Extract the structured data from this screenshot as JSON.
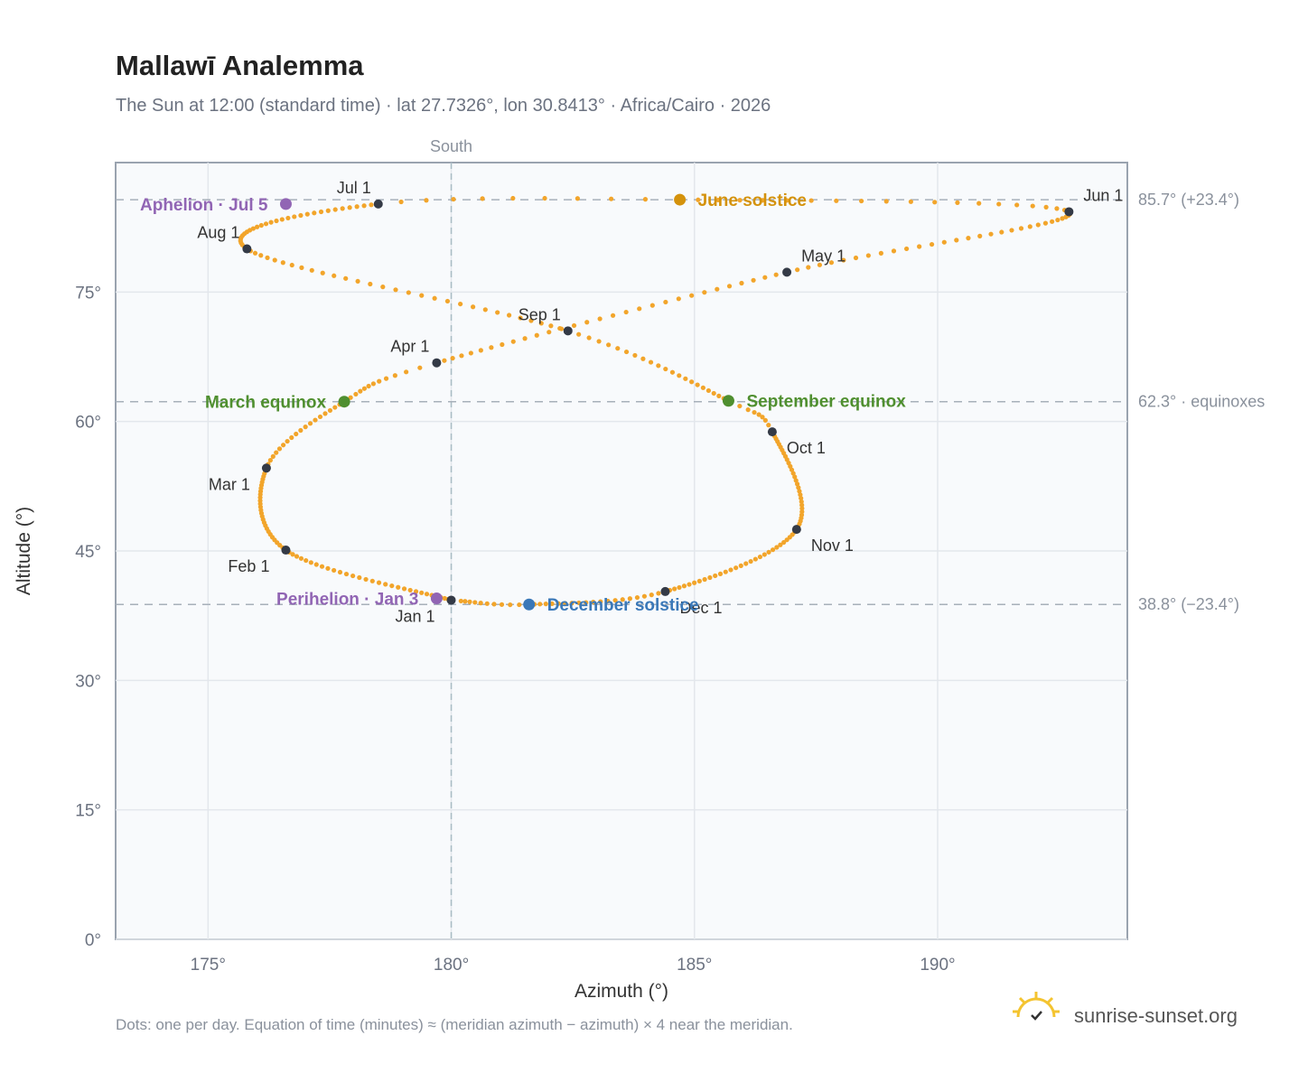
{
  "title": "Mallawī Analemma",
  "subtitle": "The Sun at 12:00 (standard time) · lat 27.7326°, lon 30.8413° · Africa/Cairo · 2026",
  "footer_note": "Dots: one per day. Equation of time (minutes) ≈ (meridian azimuth − azimuth) × 4 near the meridian.",
  "brand": "sunrise-sunset.org",
  "colors": {
    "path": "#f2a52b",
    "month_marker": "#343a46",
    "equinox": "#4f8f2f",
    "june_solstice": "#d4920c",
    "december_solstice": "#3a78b8",
    "apsis": "#9165b4",
    "plot_bg": "#f8fafc",
    "grid": "#e3e7ec"
  },
  "chart_data": {
    "type": "scatter",
    "title": "Mallawī Analemma",
    "xlabel": "Azimuth (°)",
    "ylabel": "Altitude (°)",
    "xlim": [
      173.1,
      193.9
    ],
    "ylim": [
      0,
      90
    ],
    "x_ticks": [
      175,
      180,
      185,
      190
    ],
    "x_tick_labels": [
      "175°",
      "180°",
      "185°",
      "190°"
    ],
    "y_ticks": [
      0,
      15,
      30,
      45,
      60,
      75
    ],
    "y_tick_labels": [
      "0°",
      "15°",
      "30°",
      "45°",
      "60°",
      "75°"
    ],
    "grid": true,
    "meridian": {
      "azimuth": 180,
      "label": "South"
    },
    "reference_lines": [
      {
        "altitude": 85.7,
        "label": "85.7° (+23.4°)"
      },
      {
        "altitude": 62.3,
        "label": "62.3° · equinoxes"
      },
      {
        "altitude": 38.8,
        "label": "38.8° (−23.4°)"
      }
    ],
    "path_points": [
      {
        "day": 1,
        "az": 180.0,
        "alt": 39.3
      },
      {
        "day": 32,
        "az": 176.6,
        "alt": 45.1
      },
      {
        "day": 60,
        "az": 176.2,
        "alt": 54.6
      },
      {
        "day": 79,
        "az": 177.8,
        "alt": 62.3
      },
      {
        "day": 91,
        "az": 179.7,
        "alt": 66.8
      },
      {
        "day": 121,
        "az": 186.9,
        "alt": 77.3
      },
      {
        "day": 152,
        "az": 192.7,
        "alt": 84.3
      },
      {
        "day": 172,
        "az": 184.7,
        "alt": 85.7
      },
      {
        "day": 182,
        "az": 178.5,
        "alt": 85.2
      },
      {
        "day": 213,
        "az": 175.8,
        "alt": 80.0
      },
      {
        "day": 244,
        "az": 182.4,
        "alt": 70.5
      },
      {
        "day": 266,
        "az": 185.7,
        "alt": 62.4
      },
      {
        "day": 274,
        "az": 186.6,
        "alt": 58.8
      },
      {
        "day": 305,
        "az": 187.1,
        "alt": 47.5
      },
      {
        "day": 335,
        "az": 184.4,
        "alt": 40.3
      },
      {
        "day": 355,
        "az": 181.6,
        "alt": 38.8
      },
      {
        "day": 365,
        "az": 180.2,
        "alt": 39.2
      }
    ],
    "month_markers": [
      {
        "label": "Jan 1",
        "az": 180.0,
        "alt": 39.3,
        "pos": "bl"
      },
      {
        "label": "Feb 1",
        "az": 176.6,
        "alt": 45.1,
        "pos": "bl"
      },
      {
        "label": "Mar 1",
        "az": 176.2,
        "alt": 54.6,
        "pos": "bl"
      },
      {
        "label": "Apr 1",
        "az": 179.7,
        "alt": 66.8,
        "pos": "tl"
      },
      {
        "label": "May 1",
        "az": 186.9,
        "alt": 77.3,
        "pos": "tr"
      },
      {
        "label": "Jun 1",
        "az": 192.7,
        "alt": 84.3,
        "pos": "tr"
      },
      {
        "label": "Jul 1",
        "az": 178.5,
        "alt": 85.2,
        "pos": "tl"
      },
      {
        "label": "Aug 1",
        "az": 175.8,
        "alt": 80.0,
        "pos": "tl"
      },
      {
        "label": "Sep 1",
        "az": 182.4,
        "alt": 70.5,
        "pos": "tl"
      },
      {
        "label": "Oct 1",
        "az": 186.6,
        "alt": 58.8,
        "pos": "br"
      },
      {
        "label": "Nov 1",
        "az": 187.1,
        "alt": 47.5,
        "pos": "br"
      },
      {
        "label": "Dec 1",
        "az": 184.4,
        "alt": 40.3,
        "pos": "br"
      }
    ],
    "events": [
      {
        "label": "March equinox",
        "az": 177.8,
        "alt": 62.3,
        "side": "left",
        "color": "#4f8f2f"
      },
      {
        "label": "June solstice",
        "az": 184.7,
        "alt": 85.7,
        "side": "right",
        "color": "#d4920c"
      },
      {
        "label": "September equinox",
        "az": 185.7,
        "alt": 62.4,
        "side": "right",
        "color": "#4f8f2f"
      },
      {
        "label": "December solstice",
        "az": 181.6,
        "alt": 38.8,
        "side": "right",
        "color": "#3a78b8"
      },
      {
        "label": "Perihelion · Jan 3",
        "az": 179.7,
        "alt": 39.5,
        "side": "left",
        "color": "#9165b4"
      },
      {
        "label": "Aphelion · Jul 5",
        "az": 176.6,
        "alt": 85.2,
        "side": "left",
        "color": "#9165b4"
      }
    ]
  }
}
